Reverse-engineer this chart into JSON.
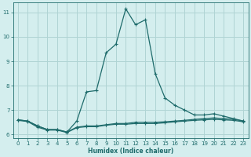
{
  "xlabel": "Humidex (Indice chaleur)",
  "ylabel": "",
  "bg_color": "#d4eeee",
  "grid_color": "#afd4d4",
  "line_color": "#1e6b6b",
  "x_main": [
    0,
    1,
    2,
    3,
    4,
    5,
    6,
    7,
    8,
    9,
    10,
    11,
    12,
    13,
    14,
    15,
    16,
    17,
    18,
    19,
    20,
    21,
    22,
    23
  ],
  "y_main": [
    6.6,
    6.55,
    6.35,
    6.2,
    6.2,
    6.1,
    6.55,
    7.75,
    7.8,
    9.35,
    9.7,
    11.15,
    10.5,
    10.7,
    8.5,
    7.5,
    7.2,
    7.0,
    6.8,
    6.8,
    6.85,
    6.75,
    6.65,
    6.55
  ],
  "x_flat1": [
    0,
    1,
    2,
    3,
    4,
    5,
    6,
    7,
    8,
    9,
    10,
    11,
    12,
    13,
    14,
    15,
    16,
    17,
    18,
    19,
    20,
    21,
    22,
    23
  ],
  "y_flat1": [
    6.6,
    6.55,
    6.35,
    6.2,
    6.2,
    6.1,
    6.3,
    6.35,
    6.35,
    6.4,
    6.45,
    6.45,
    6.5,
    6.5,
    6.5,
    6.52,
    6.55,
    6.58,
    6.62,
    6.65,
    6.68,
    6.65,
    6.62,
    6.55
  ],
  "x_flat2": [
    0,
    1,
    2,
    3,
    4,
    5,
    6,
    7,
    8,
    9,
    10,
    11,
    12,
    13,
    14,
    15,
    16,
    17,
    18,
    19,
    20,
    21,
    22,
    23
  ],
  "y_flat2": [
    6.58,
    6.53,
    6.3,
    6.18,
    6.18,
    6.08,
    6.28,
    6.32,
    6.32,
    6.38,
    6.42,
    6.42,
    6.45,
    6.45,
    6.45,
    6.48,
    6.52,
    6.55,
    6.58,
    6.6,
    6.62,
    6.6,
    6.58,
    6.52
  ],
  "xlim": [
    -0.5,
    23.5
  ],
  "ylim": [
    5.85,
    11.4
  ],
  "yticks": [
    6,
    7,
    8,
    9,
    10,
    11
  ],
  "xticks": [
    0,
    1,
    2,
    3,
    4,
    5,
    6,
    7,
    8,
    9,
    10,
    11,
    12,
    13,
    14,
    15,
    16,
    17,
    18,
    19,
    20,
    21,
    22,
    23
  ]
}
